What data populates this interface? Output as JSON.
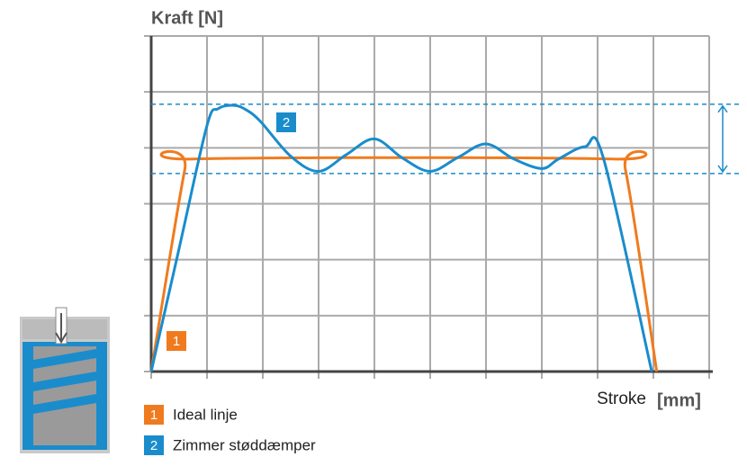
{
  "chart_data": {
    "type": "line",
    "y_label": "Kraft [N]",
    "x_label": "Stroke",
    "x_unit": "[mm]",
    "xlim": [
      0,
      10
    ],
    "ylim": [
      0,
      6
    ],
    "xticks": [
      0,
      1,
      2,
      3,
      4,
      5,
      6,
      7,
      8,
      9,
      10
    ],
    "yticks": [
      0,
      1,
      2,
      3,
      4,
      5,
      6
    ],
    "grid": true,
    "reference_lines": [
      4.78,
      3.54
    ],
    "reference_color": "#1a8ccc",
    "series": [
      {
        "name": "Ideal linje",
        "badge": "1",
        "color": "#f07b1e",
        "x": [
          0,
          0.6,
          0.76,
          8.26,
          8.5,
          9.06
        ],
        "values": [
          0,
          3.6,
          3.8,
          3.8,
          3.6,
          0
        ]
      },
      {
        "name": "Zimmer støddæmper",
        "badge": "2",
        "color": "#1a8ccc",
        "x": [
          0,
          0.5,
          1,
          1.2,
          1.48,
          1.7,
          1.96,
          2.5,
          3,
          3.5,
          4,
          4.5,
          5,
          5.5,
          6,
          6.5,
          7,
          7.3,
          7.77,
          8.1,
          8.97
        ],
        "values": [
          0,
          2.2,
          4.4,
          4.7,
          4.76,
          4.68,
          4.47,
          3.85,
          3.58,
          3.88,
          4.16,
          3.82,
          3.58,
          3.83,
          4.07,
          3.8,
          3.63,
          3.8,
          4.02,
          3.83,
          0
        ]
      }
    ]
  }
}
